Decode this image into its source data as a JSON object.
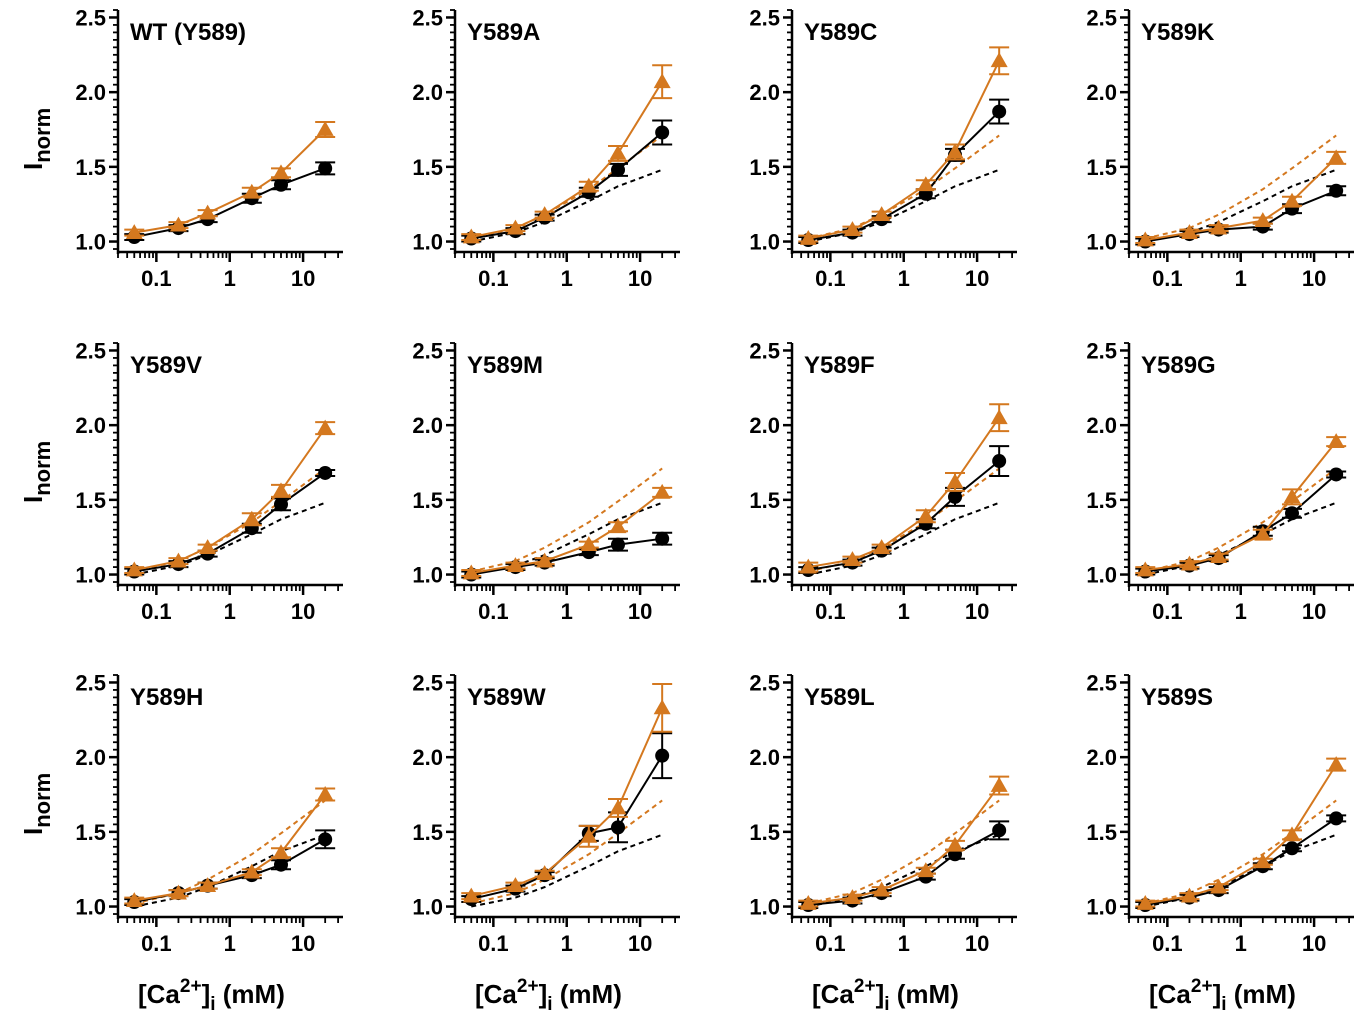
{
  "chart_data": {
    "type": "line",
    "xscale": "log",
    "xlim": [
      0.03,
      35
    ],
    "ylim": [
      0.93,
      2.55
    ],
    "x_ticks": [
      0.1,
      1,
      10
    ],
    "x_tick_labels": [
      "0.1",
      "1",
      "10"
    ],
    "y_ticks": [
      1.0,
      1.5,
      2.0,
      2.5
    ],
    "y_tick_labels": [
      "1.0",
      "1.5",
      "2.0",
      "2.5"
    ],
    "ylabel": {
      "main": "I",
      "sub": "norm"
    },
    "xlabel": {
      "pre": "[Ca",
      "sup": "2+",
      "mid": "]",
      "sub": "i",
      "post": " (mM)"
    },
    "x": [
      0.05,
      0.2,
      0.5,
      2,
      5,
      20
    ],
    "colors": {
      "circle": "#000000",
      "triangle": "#d4781f"
    },
    "dashed_reference": {
      "black": [
        1.0,
        1.06,
        1.13,
        1.27,
        1.37,
        1.48
      ],
      "orange": [
        1.02,
        1.09,
        1.18,
        1.35,
        1.49,
        1.71
      ]
    },
    "panels": [
      {
        "title": "WT (Y589)",
        "circle": [
          1.03,
          1.09,
          1.15,
          1.29,
          1.38,
          1.49
        ],
        "circle_err": [
          0.02,
          0.02,
          0.02,
          0.03,
          0.03,
          0.04
        ],
        "triangle": [
          1.06,
          1.11,
          1.19,
          1.33,
          1.46,
          1.75
        ],
        "triangle_err": [
          0.02,
          0.02,
          0.02,
          0.03,
          0.03,
          0.05
        ],
        "dashed": false
      },
      {
        "title": "Y589A",
        "circle": [
          1.02,
          1.07,
          1.16,
          1.33,
          1.48,
          1.73
        ],
        "circle_err": [
          0.02,
          0.02,
          0.02,
          0.03,
          0.04,
          0.08
        ],
        "triangle": [
          1.03,
          1.09,
          1.18,
          1.37,
          1.59,
          2.07
        ],
        "triangle_err": [
          0.02,
          0.02,
          0.02,
          0.03,
          0.05,
          0.11
        ],
        "dashed": true
      },
      {
        "title": "Y589C",
        "circle": [
          1.01,
          1.06,
          1.15,
          1.32,
          1.58,
          1.87
        ],
        "circle_err": [
          0.02,
          0.02,
          0.02,
          0.03,
          0.04,
          0.08
        ],
        "triangle": [
          1.02,
          1.08,
          1.18,
          1.38,
          1.6,
          2.21
        ],
        "triangle_err": [
          0.02,
          0.02,
          0.02,
          0.03,
          0.05,
          0.09
        ],
        "dashed": true
      },
      {
        "title": "Y589K",
        "circle": [
          1.0,
          1.05,
          1.08,
          1.1,
          1.22,
          1.34
        ],
        "circle_err": [
          0.02,
          0.02,
          0.02,
          0.02,
          0.03,
          0.03
        ],
        "triangle": [
          1.01,
          1.06,
          1.09,
          1.14,
          1.27,
          1.56
        ],
        "triangle_err": [
          0.02,
          0.02,
          0.02,
          0.02,
          0.03,
          0.04
        ],
        "dashed": true
      },
      {
        "title": "Y589V",
        "circle": [
          1.02,
          1.07,
          1.14,
          1.31,
          1.47,
          1.68
        ],
        "circle_err": [
          0.02,
          0.02,
          0.02,
          0.03,
          0.04,
          0.02
        ],
        "triangle": [
          1.03,
          1.09,
          1.18,
          1.37,
          1.56,
          1.98
        ],
        "triangle_err": [
          0.02,
          0.02,
          0.02,
          0.04,
          0.04,
          0.04
        ],
        "dashed": true
      },
      {
        "title": "Y589M",
        "circle": [
          1.0,
          1.05,
          1.08,
          1.15,
          1.2,
          1.24
        ],
        "circle_err": [
          0.02,
          0.02,
          0.02,
          0.02,
          0.04,
          0.04
        ],
        "triangle": [
          1.01,
          1.06,
          1.09,
          1.2,
          1.32,
          1.55
        ],
        "triangle_err": [
          0.02,
          0.02,
          0.02,
          0.02,
          0.03,
          0.03
        ],
        "dashed": true
      },
      {
        "title": "Y589F",
        "circle": [
          1.03,
          1.08,
          1.16,
          1.34,
          1.52,
          1.76
        ],
        "circle_err": [
          0.02,
          0.02,
          0.02,
          0.03,
          0.06,
          0.1
        ],
        "triangle": [
          1.05,
          1.1,
          1.18,
          1.39,
          1.62,
          2.05
        ],
        "triangle_err": [
          0.03,
          0.02,
          0.02,
          0.04,
          0.06,
          0.09
        ],
        "dashed": true
      },
      {
        "title": "Y589G",
        "circle": [
          1.02,
          1.06,
          1.11,
          1.29,
          1.41,
          1.67
        ],
        "circle_err": [
          0.02,
          0.02,
          0.02,
          0.03,
          0.03,
          0.02
        ],
        "triangle": [
          1.03,
          1.07,
          1.12,
          1.27,
          1.52,
          1.89
        ],
        "triangle_err": [
          0.02,
          0.02,
          0.02,
          0.03,
          0.05,
          0.03
        ],
        "dashed": true
      },
      {
        "title": "Y589H",
        "circle": [
          1.03,
          1.09,
          1.14,
          1.21,
          1.28,
          1.45
        ],
        "circle_err": [
          0.02,
          0.02,
          0.02,
          0.02,
          0.03,
          0.06
        ],
        "triangle": [
          1.04,
          1.09,
          1.14,
          1.23,
          1.36,
          1.75
        ],
        "triangle_err": [
          0.02,
          0.02,
          0.02,
          0.02,
          0.03,
          0.04
        ],
        "dashed": true
      },
      {
        "title": "Y589W",
        "circle": [
          1.05,
          1.12,
          1.21,
          1.49,
          1.53,
          2.01
        ],
        "circle_err": [
          0.02,
          0.02,
          0.02,
          0.05,
          0.1,
          0.15
        ],
        "triangle": [
          1.07,
          1.14,
          1.22,
          1.47,
          1.66,
          2.33
        ],
        "triangle_err": [
          0.02,
          0.02,
          0.02,
          0.07,
          0.06,
          0.16
        ],
        "dashed": true
      },
      {
        "title": "Y589L",
        "circle": [
          1.01,
          1.04,
          1.09,
          1.2,
          1.35,
          1.51
        ],
        "circle_err": [
          0.02,
          0.02,
          0.02,
          0.02,
          0.03,
          0.06
        ],
        "triangle": [
          1.02,
          1.06,
          1.11,
          1.24,
          1.41,
          1.81
        ],
        "triangle_err": [
          0.02,
          0.02,
          0.02,
          0.02,
          0.03,
          0.06
        ],
        "dashed": true
      },
      {
        "title": "Y589S",
        "circle": [
          1.01,
          1.06,
          1.11,
          1.27,
          1.39,
          1.59
        ],
        "circle_err": [
          0.02,
          0.02,
          0.02,
          0.02,
          0.02,
          0.02
        ],
        "triangle": [
          1.02,
          1.07,
          1.13,
          1.3,
          1.48,
          1.95
        ],
        "triangle_err": [
          0.02,
          0.02,
          0.02,
          0.02,
          0.03,
          0.04
        ],
        "dashed": true
      }
    ]
  }
}
